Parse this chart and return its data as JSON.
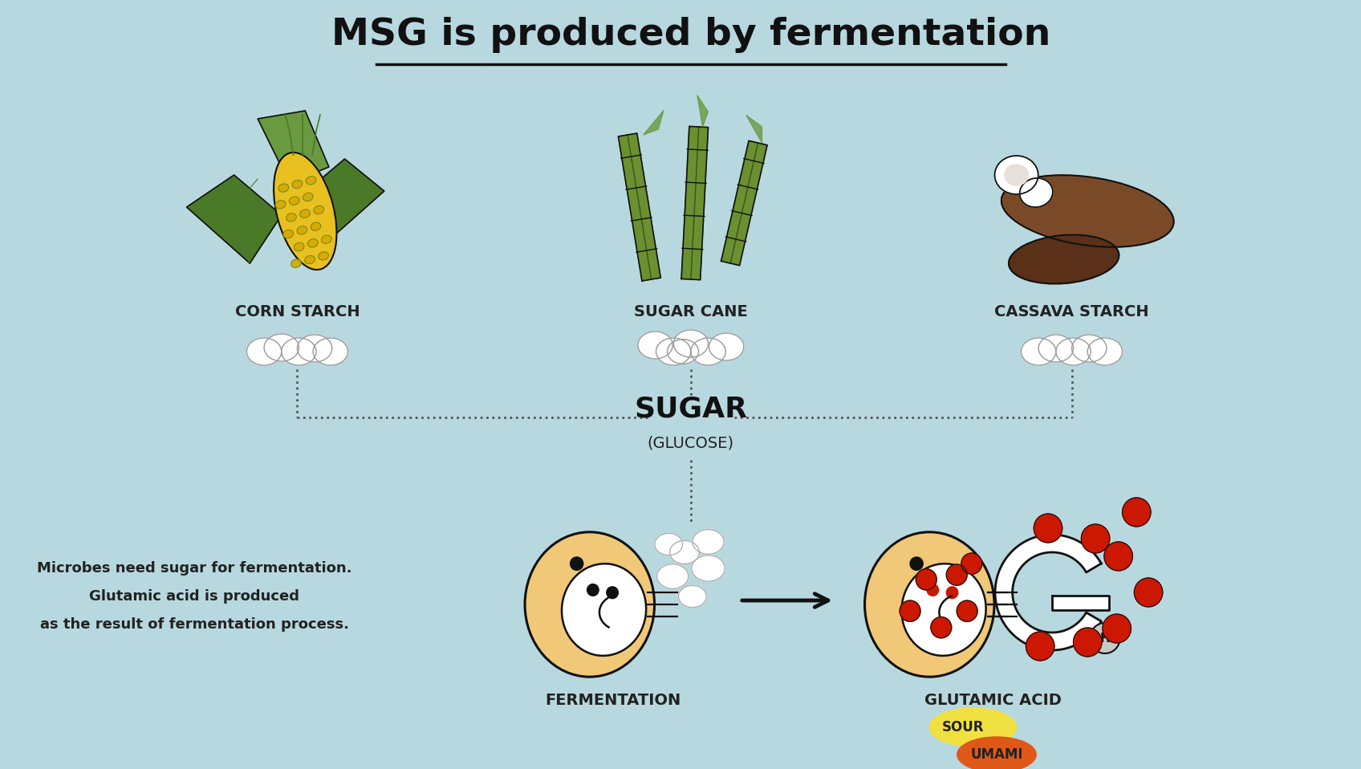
{
  "title": "MSG is produced by fermentation",
  "background_color": "#b8d8df",
  "title_fontsize": 34,
  "labels": {
    "corn_starch": "CORN STARCH",
    "sugar_cane": "SUGAR CANE",
    "cassava_starch": "CASSAVA STARCH",
    "sugar": "SUGAR",
    "glucose": "(GLUCOSE)",
    "fermentation": "FERMENTATION",
    "glutamic_acid": "GLUTAMIC ACID",
    "sour": "SOUR",
    "umami": "UMAMI",
    "microbes_text_1": "Microbes need sugar for fermentation.",
    "microbes_text_2": "Glutamic acid is produced",
    "microbes_text_3": "as the result of fermentation process."
  },
  "colors": {
    "black": "#111111",
    "dark_gray": "#222222",
    "mid_gray": "#555555",
    "microbe_body": "#f0c878",
    "red_dot": "#cc1800",
    "sugar_yellow": "#f0e040",
    "umami_orange": "#e05818",
    "corn_green_dark": "#4a7a28",
    "corn_green_light": "#6a9a40",
    "corn_yellow": "#e8c020",
    "corn_kernel": "#d4a800",
    "cassava_brown": "#7a4a28",
    "cassava_dark": "#5a3018",
    "sugarcane_green": "#6a9030",
    "sugarcane_light": "#88b048",
    "dotted_color": "#555555",
    "arrow_color": "#111111",
    "white": "#ffffff",
    "cream": "#f8f0e0"
  }
}
